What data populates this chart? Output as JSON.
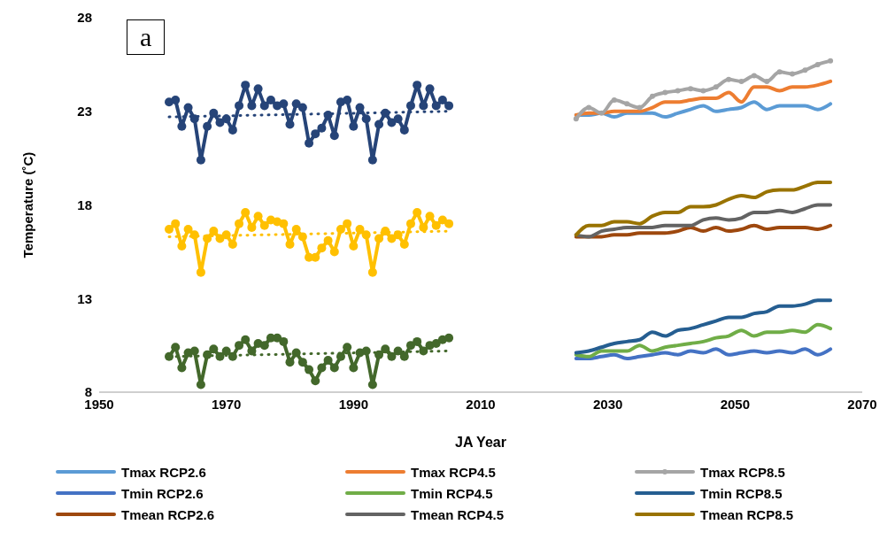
{
  "chart_data": {
    "type": "line",
    "xlabel": "JA Year",
    "ylabel": "Temperature (˚C)",
    "annotations": [
      "a"
    ],
    "xlim": [
      1950,
      2070
    ],
    "xticks": [
      1950,
      1970,
      1990,
      2010,
      2030,
      2050,
      2070
    ],
    "ylim": [
      8,
      28
    ],
    "yticks": [
      8,
      13,
      18,
      23,
      28
    ],
    "legend": "bottom",
    "x": [
      2025,
      2027,
      2029,
      2031,
      2033,
      2035,
      2037,
      2039,
      2041,
      2043,
      2045,
      2047,
      2049,
      2051,
      2053,
      2055,
      2057,
      2059,
      2061,
      2063,
      2065
    ],
    "series": [
      {
        "color": "#264478",
        "marker": "circle",
        "x": [
          1961,
          1962,
          1963,
          1964,
          1965,
          1966,
          1967,
          1968,
          1969,
          1970,
          1971,
          1972,
          1973,
          1974,
          1975,
          1976,
          1977,
          1978,
          1979,
          1980,
          1981,
          1982,
          1983,
          1984,
          1985,
          1986,
          1987,
          1988,
          1989,
          1990,
          1991,
          1992,
          1993,
          1994,
          1995,
          1996,
          1997,
          1998,
          1999,
          2000,
          2001,
          2002,
          2003,
          2004,
          2005
        ],
        "values": [
          23.5,
          23.6,
          22.2,
          23.2,
          22.6,
          20.4,
          22.2,
          22.9,
          22.4,
          22.6,
          22.0,
          23.3,
          24.4,
          23.3,
          24.2,
          23.3,
          23.6,
          23.3,
          23.4,
          22.3,
          23.4,
          23.2,
          21.3,
          21.8,
          22.1,
          22.8,
          21.7,
          23.5,
          23.6,
          22.2,
          23.2,
          22.6,
          20.4,
          22.3,
          22.9,
          22.4,
          22.6,
          22.0,
          23.3,
          24.4,
          23.3,
          24.2,
          23.3,
          23.6,
          23.3
        ]
      },
      {
        "color": "#ffc000",
        "marker": "circle",
        "x": [
          1961,
          1962,
          1963,
          1964,
          1965,
          1966,
          1967,
          1968,
          1969,
          1970,
          1971,
          1972,
          1973,
          1974,
          1975,
          1976,
          1977,
          1978,
          1979,
          1980,
          1981,
          1982,
          1983,
          1984,
          1985,
          1986,
          1987,
          1988,
          1989,
          1990,
          1991,
          1992,
          1993,
          1994,
          1995,
          1996,
          1997,
          1998,
          1999,
          2000,
          2001,
          2002,
          2003,
          2004,
          2005
        ],
        "values": [
          16.7,
          17.0,
          15.8,
          16.7,
          16.4,
          14.4,
          16.2,
          16.6,
          16.2,
          16.4,
          15.9,
          17.0,
          17.6,
          16.8,
          17.4,
          16.9,
          17.2,
          17.1,
          17.0,
          15.9,
          16.7,
          16.3,
          15.2,
          15.2,
          15.7,
          16.1,
          15.5,
          16.7,
          17.0,
          15.8,
          16.7,
          16.4,
          14.4,
          16.2,
          16.6,
          16.2,
          16.4,
          15.9,
          17.0,
          17.6,
          16.8,
          17.4,
          16.9,
          17.2,
          17.0
        ]
      },
      {
        "color": "#43682b",
        "marker": "circle",
        "x": [
          1961,
          1962,
          1963,
          1964,
          1965,
          1966,
          1967,
          1968,
          1969,
          1970,
          1971,
          1972,
          1973,
          1974,
          1975,
          1976,
          1977,
          1978,
          1979,
          1980,
          1981,
          1982,
          1983,
          1984,
          1985,
          1986,
          1987,
          1988,
          1989,
          1990,
          1991,
          1992,
          1993,
          1994,
          1995,
          1996,
          1997,
          1998,
          1999,
          2000,
          2001,
          2002,
          2003,
          2004,
          2005
        ],
        "values": [
          9.9,
          10.4,
          9.3,
          10.1,
          10.2,
          8.4,
          10.0,
          10.3,
          9.9,
          10.2,
          9.9,
          10.5,
          10.8,
          10.2,
          10.6,
          10.5,
          10.9,
          10.9,
          10.7,
          9.6,
          10.1,
          9.6,
          9.2,
          8.6,
          9.3,
          9.7,
          9.3,
          9.9,
          10.4,
          9.3,
          10.1,
          10.2,
          8.4,
          10.0,
          10.3,
          9.9,
          10.2,
          9.9,
          10.5,
          10.7,
          10.2,
          10.5,
          10.6,
          10.8,
          10.9
        ]
      },
      {
        "color": "#264478",
        "line_style": "dotted",
        "x": [
          1961,
          2005
        ],
        "values": [
          22.7,
          23.0
        ]
      },
      {
        "color": "#ffc000",
        "line_style": "dotted",
        "x": [
          1961,
          2005
        ],
        "values": [
          16.3,
          16.6
        ]
      },
      {
        "color": "#43682b",
        "line_style": "dotted",
        "x": [
          1961,
          2005
        ],
        "values": [
          9.9,
          10.2
        ]
      },
      {
        "name": "Tmax RCP2.6",
        "color": "#5b9bd5",
        "values": [
          22.8,
          22.8,
          22.9,
          22.7,
          22.9,
          22.9,
          22.9,
          22.7,
          22.9,
          23.1,
          23.3,
          23.0,
          23.1,
          23.2,
          23.5,
          23.1,
          23.3,
          23.3,
          23.3,
          23.1,
          23.4
        ]
      },
      {
        "name": "Tmax RCP4.5",
        "color": "#ed7d31",
        "values": [
          22.8,
          22.9,
          22.9,
          23.0,
          23.0,
          23.0,
          23.2,
          23.5,
          23.5,
          23.6,
          23.7,
          23.7,
          24.0,
          23.5,
          24.3,
          24.3,
          24.1,
          24.3,
          24.3,
          24.4,
          24.6
        ]
      },
      {
        "name": "Tmax RCP8.5",
        "color": "#a5a5a5",
        "marker": "circle",
        "values": [
          22.6,
          23.2,
          22.9,
          23.6,
          23.4,
          23.2,
          23.8,
          24.0,
          24.1,
          24.2,
          24.1,
          24.3,
          24.7,
          24.6,
          24.9,
          24.6,
          25.1,
          25.0,
          25.2,
          25.5,
          25.7
        ]
      },
      {
        "name": "Tmin RCP2.6",
        "color": "#4472c4",
        "values": [
          9.8,
          9.8,
          9.9,
          10.0,
          9.8,
          9.9,
          10.0,
          10.1,
          10.0,
          10.2,
          10.1,
          10.3,
          10.0,
          10.1,
          10.2,
          10.1,
          10.2,
          10.1,
          10.3,
          10.0,
          10.3
        ]
      },
      {
        "name": "Tmin RCP4.5",
        "color": "#70ad47",
        "values": [
          10.0,
          9.9,
          10.2,
          10.2,
          10.2,
          10.5,
          10.2,
          10.4,
          10.5,
          10.6,
          10.7,
          10.9,
          11.0,
          11.3,
          11.0,
          11.2,
          11.2,
          11.3,
          11.2,
          11.6,
          11.4
        ]
      },
      {
        "name": "Tmin RCP8.5",
        "color": "#255e91",
        "values": [
          10.1,
          10.2,
          10.4,
          10.6,
          10.7,
          10.8,
          11.2,
          11.0,
          11.3,
          11.4,
          11.6,
          11.8,
          12.0,
          12.0,
          12.2,
          12.3,
          12.6,
          12.6,
          12.7,
          12.9,
          12.9
        ]
      },
      {
        "name": "Tmean RCP2.6",
        "color": "#9e480e",
        "values": [
          16.3,
          16.3,
          16.3,
          16.4,
          16.4,
          16.5,
          16.5,
          16.5,
          16.6,
          16.8,
          16.6,
          16.8,
          16.6,
          16.7,
          16.9,
          16.7,
          16.8,
          16.8,
          16.8,
          16.7,
          16.9
        ]
      },
      {
        "name": "Tmean RCP4.5",
        "color": "#636363",
        "values": [
          16.4,
          16.3,
          16.6,
          16.7,
          16.8,
          16.8,
          16.8,
          16.9,
          16.9,
          16.9,
          17.2,
          17.3,
          17.2,
          17.3,
          17.6,
          17.6,
          17.7,
          17.6,
          17.8,
          18.0,
          18.0
        ]
      },
      {
        "name": "Tmean RCP8.5",
        "color": "#997300",
        "values": [
          16.4,
          16.9,
          16.9,
          17.1,
          17.1,
          17.0,
          17.4,
          17.6,
          17.6,
          17.9,
          17.9,
          18.0,
          18.3,
          18.5,
          18.4,
          18.7,
          18.8,
          18.8,
          19.0,
          19.2,
          19.2
        ]
      }
    ]
  }
}
